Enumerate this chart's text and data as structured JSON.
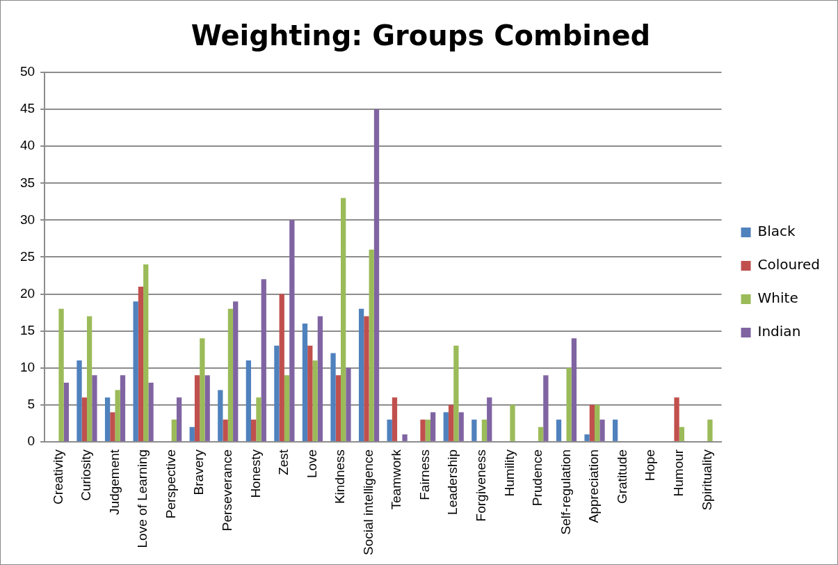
{
  "chart_data": {
    "type": "bar",
    "title": "Weighting: Groups Combined",
    "categories": [
      "Creativity",
      "Curiosity",
      "Judgement",
      "Love of Learning",
      "Perspective",
      "Bravery",
      "Perseverance",
      "Honesty",
      "Zest",
      "Love",
      "Kindness",
      "Social intelligence",
      "Teamwork",
      "Fairness",
      "Leadership",
      "Forgiveness",
      "Humility",
      "Prudence",
      "Self-regulation",
      "Appreciation",
      "Gratitude",
      "Hope",
      "Humour",
      "Spirituality"
    ],
    "series": [
      {
        "name": "Black",
        "color": "#4f81bd",
        "values": [
          0,
          11,
          6,
          19,
          0,
          2,
          7,
          11,
          13,
          16,
          12,
          18,
          3,
          0,
          4,
          3,
          0,
          0,
          3,
          1,
          3,
          0,
          0,
          0
        ]
      },
      {
        "name": "Coloured",
        "color": "#c0504d",
        "values": [
          0,
          6,
          4,
          21,
          0,
          9,
          3,
          3,
          20,
          13,
          9,
          17,
          6,
          3,
          5,
          0,
          0,
          0,
          0,
          5,
          0,
          0,
          6,
          0
        ]
      },
      {
        "name": "White",
        "color": "#9bbb59",
        "values": [
          18,
          17,
          7,
          24,
          3,
          14,
          18,
          6,
          9,
          11,
          33,
          26,
          0,
          3,
          13,
          3,
          5,
          2,
          10,
          5,
          0,
          0,
          2,
          3
        ]
      },
      {
        "name": "Indian",
        "color": "#8064a2",
        "values": [
          8,
          9,
          9,
          8,
          6,
          9,
          19,
          22,
          30,
          17,
          10,
          45,
          1,
          4,
          4,
          6,
          0,
          9,
          14,
          3,
          0,
          0,
          0,
          0
        ]
      }
    ],
    "ylim": [
      0,
      50
    ],
    "yticks": [
      0,
      5,
      10,
      15,
      20,
      25,
      30,
      35,
      40,
      45,
      50
    ],
    "grid": "y",
    "legend": "right"
  }
}
